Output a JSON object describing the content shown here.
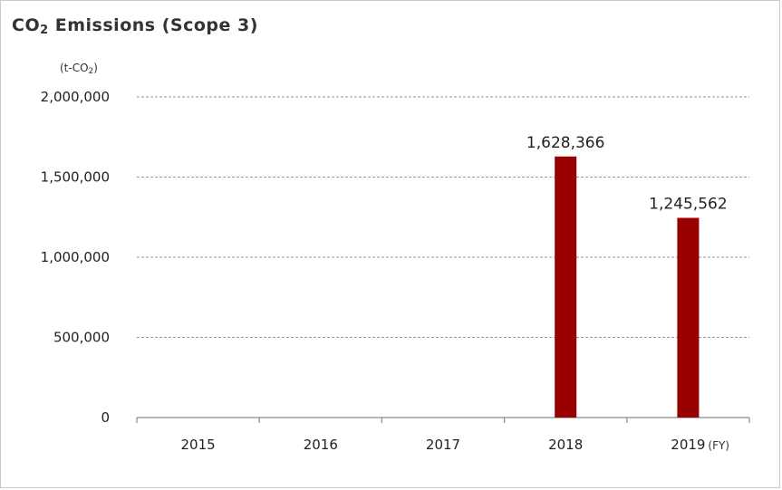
{
  "chart_data": {
    "type": "bar",
    "title_main": "CO",
    "title_sub": "2",
    "title_rest": " Emissions (Scope 3)",
    "ylabel_main": "(t-CO",
    "ylabel_sub": "2",
    "ylabel_end": ")",
    "xunit": "(FY)",
    "categories": [
      "2015",
      "2016",
      "2017",
      "2018",
      "2019"
    ],
    "values": [
      null,
      null,
      null,
      1628366,
      1245562
    ],
    "data_labels": [
      "",
      "",
      "",
      "1,628,366",
      "1,245,562"
    ],
    "ylim": [
      0,
      2000000
    ],
    "yticks": [
      0,
      500000,
      1000000,
      1500000,
      2000000
    ],
    "ytick_labels": [
      "0",
      "500,000",
      "1,000,000",
      "1,500,000",
      "2,000,000"
    ],
    "grid": true,
    "bar_color": "#990000",
    "grid_color": "#9a9a9a"
  }
}
